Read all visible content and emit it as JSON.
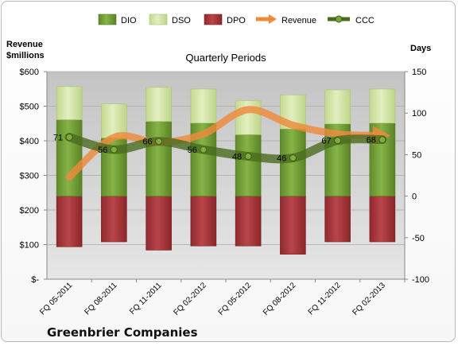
{
  "chart_data": {
    "type": "bar",
    "title": "Quarterly Periods",
    "company": "Greenbrier Companies",
    "left_axis_label": [
      "Revenue",
      "$millions"
    ],
    "right_axis_label": "Days",
    "categories": [
      "FQ 05-2011",
      "FQ 08-2011",
      "FQ 11-2011",
      "FQ 02-2012",
      "FQ 05-2012",
      "FQ 08-2012",
      "FQ 11-2012",
      "FQ 02-2013"
    ],
    "left_axis": {
      "ylim": [
        0,
        600
      ],
      "ticks": [
        "$-",
        "$100",
        "$200",
        "$300",
        "$400",
        "$500",
        "$600"
      ]
    },
    "right_axis": {
      "ylim": [
        -100,
        150
      ],
      "ticks": [
        "-100",
        "-50",
        "0",
        "50",
        "100",
        "150"
      ]
    },
    "legend": {
      "position": "top",
      "entries": [
        "DIO",
        "DSO",
        "DPO",
        "Revenue",
        "CCC"
      ]
    },
    "grid": true,
    "series": [
      {
        "name": "DIO",
        "axis": "right",
        "values": [
          92,
          70,
          90,
          88,
          74,
          81,
          87,
          88
        ]
      },
      {
        "name": "DSO",
        "axis": "right",
        "values": [
          40,
          41,
          41,
          41,
          41,
          41,
          41,
          41
        ]
      },
      {
        "name": "DPO",
        "axis": "right",
        "values": [
          -61,
          -55,
          -65,
          -60,
          -60,
          -70,
          -55,
          -55
        ]
      },
      {
        "name": "Revenue",
        "axis": "left",
        "values": [
          295,
          410,
          395,
          420,
          490,
          445,
          420,
          415
        ]
      },
      {
        "name": "CCC",
        "axis": "right",
        "values": [
          71,
          56,
          66,
          56,
          48,
          46,
          67,
          68
        ]
      }
    ],
    "colors": {
      "DIO": "#77a33a",
      "DSO": "#d6e6a8",
      "DPO": "#a8363b",
      "Revenue": "#ee8a3c",
      "CCC": "#4a6b1e"
    }
  }
}
